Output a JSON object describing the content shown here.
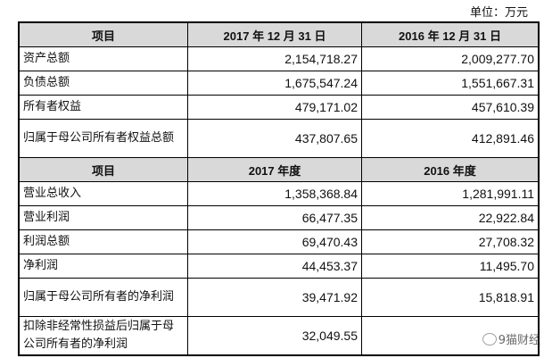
{
  "unit_label": "单位：万元",
  "balance": {
    "headers": [
      "项目",
      "2017 年 12 月 31 日",
      "2016 年 12 月 31 日"
    ],
    "rows": [
      {
        "label": "资产总额",
        "v2017": "2,154,718.27",
        "v2016": "2,009,277.70"
      },
      {
        "label": "负债总额",
        "v2017": "1,675,547.24",
        "v2016": "1,551,667.31"
      },
      {
        "label": "所有者权益",
        "v2017": "479,171.02",
        "v2016": "457,610.39"
      },
      {
        "label": "归属于母公司所有者权益总额",
        "v2017": "437,807.65",
        "v2016": "412,891.46"
      }
    ]
  },
  "income": {
    "headers": [
      "项目",
      "2017 年度",
      "2016 年度"
    ],
    "rows": [
      {
        "label": "营业总收入",
        "v2017": "1,358,368.84",
        "v2016": "1,281,991.11"
      },
      {
        "label": "营业利润",
        "v2017": "66,477.35",
        "v2016": "22,922.84"
      },
      {
        "label": "利润总额",
        "v2017": "69,470.43",
        "v2016": "27,708.32"
      },
      {
        "label": "净利润",
        "v2017": "44,453.37",
        "v2016": "11,495.70"
      },
      {
        "label": "归属于母公司所有者的净利润",
        "v2017": "39,471.92",
        "v2016": "15,818.91"
      },
      {
        "label": "扣除非经常性损益后归属于母公司所有者的净利润",
        "v2017": "32,049.55",
        "v2016": ""
      }
    ]
  },
  "watermark": {
    "text": "9猫财经",
    "icon": "wechat-icon"
  }
}
